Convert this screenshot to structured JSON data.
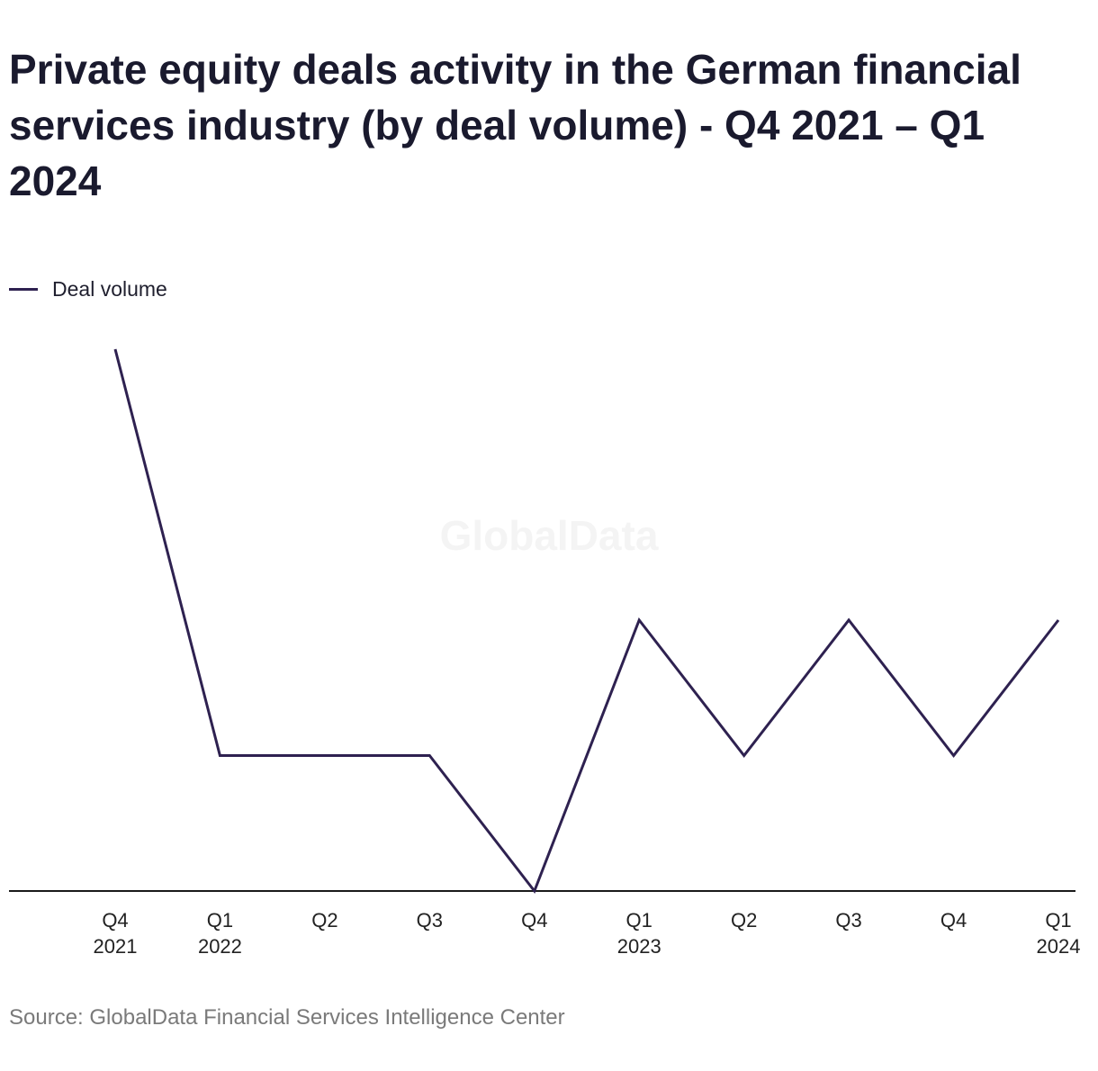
{
  "watermark": "GlobalData",
  "source": "Source: GlobalData Financial Services Intelligence Center",
  "colors": {
    "line": "#2e2150",
    "axis": "#1a1a1a",
    "title": "#1a1a2e",
    "source": "#7a7a7a"
  },
  "chart_data": {
    "type": "line",
    "title": "Private equity deals activity in the German financial services industry (by deal volume) - Q4 2021 – Q1 2024",
    "xlabel": "",
    "ylabel": "",
    "categories": [
      {
        "q": "Q4",
        "y": "2021"
      },
      {
        "q": "Q1",
        "y": "2022"
      },
      {
        "q": "Q2",
        "y": ""
      },
      {
        "q": "Q3",
        "y": ""
      },
      {
        "q": "Q4",
        "y": ""
      },
      {
        "q": "Q1",
        "y": "2023"
      },
      {
        "q": "Q2",
        "y": ""
      },
      {
        "q": "Q3",
        "y": ""
      },
      {
        "q": "Q4",
        "y": ""
      },
      {
        "q": "Q1",
        "y": "2024"
      }
    ],
    "series": [
      {
        "name": "Deal volume",
        "values": [
          5,
          2,
          2,
          2,
          1,
          3,
          2,
          3,
          2,
          3
        ]
      }
    ],
    "ylim": [
      1,
      5
    ],
    "grid": false,
    "legend": "top-left"
  }
}
